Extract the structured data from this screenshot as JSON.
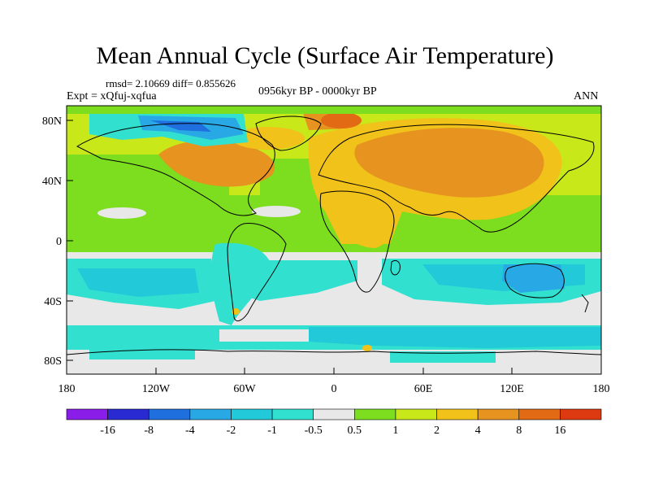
{
  "title": "Mean Annual Cycle (Surface Air Temperature)",
  "stats": {
    "rmsd_diff": "rmsd= 2.10669  diff= 0.855626",
    "experiment": "Expt = xQfuj-xqfua",
    "period": "0956kyr BP - 0000kyr BP",
    "season": "ANN"
  },
  "axes": {
    "lat_labels": [
      "80N",
      "40N",
      "0",
      "40S",
      "80S"
    ],
    "lon_labels": [
      "180",
      "120W",
      "60W",
      "0",
      "60E",
      "120E",
      "180"
    ]
  },
  "colorbar": {
    "labels": [
      "-16",
      "-8",
      "-4",
      "-2",
      "-1",
      "-0.5",
      "0.5",
      "1",
      "2",
      "4",
      "8",
      "16"
    ],
    "colors": [
      "#8a1de8",
      "#2a2ad2",
      "#1f6fdf",
      "#29a8e6",
      "#22c9d8",
      "#32e0d0",
      "#e8e8e8",
      "#7cde1e",
      "#c8e81a",
      "#f0c21a",
      "#e69320",
      "#e26a14",
      "#de3a12"
    ]
  },
  "map_colors": {
    "neutral": "#e8e8e8",
    "light_green": "#7cde1e",
    "yellow_green": "#c8e81a",
    "gold": "#f0c21a",
    "orange": "#e69320",
    "dark_orange": "#e26a14",
    "cyan": "#32e0d0",
    "teal": "#22c9d8",
    "sky_blue": "#29a8e6",
    "blue": "#1f6fdf",
    "dark_blue": "#2a2ad2"
  }
}
